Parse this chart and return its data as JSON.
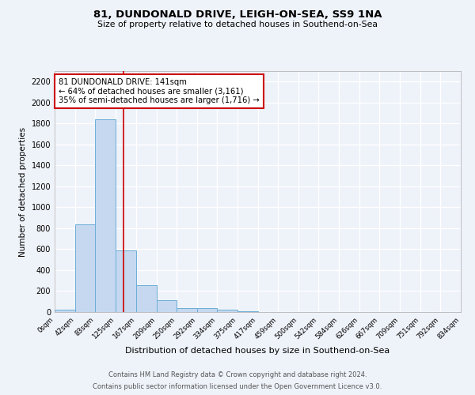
{
  "title1": "81, DUNDONALD DRIVE, LEIGH-ON-SEA, SS9 1NA",
  "title2": "Size of property relative to detached houses in Southend-on-Sea",
  "xlabel": "Distribution of detached houses by size in Southend-on-Sea",
  "ylabel": "Number of detached properties",
  "footer1": "Contains HM Land Registry data © Crown copyright and database right 2024.",
  "footer2": "Contains public sector information licensed under the Open Government Licence v3.0.",
  "annotation_line1": "81 DUNDONALD DRIVE: 141sqm",
  "annotation_line2": "← 64% of detached houses are smaller (3,161)",
  "annotation_line3": "35% of semi-detached houses are larger (1,716) →",
  "bar_color": "#c5d8f0",
  "bar_edge_color": "#6baed6",
  "vline_color": "#cc0000",
  "vline_x": 141,
  "bin_edges": [
    0,
    42,
    83,
    125,
    167,
    209,
    250,
    292,
    334,
    375,
    417,
    459,
    500,
    542,
    584,
    626,
    667,
    709,
    751,
    792,
    834
  ],
  "bar_heights": [
    20,
    840,
    1840,
    590,
    255,
    115,
    38,
    35,
    22,
    8,
    0,
    0,
    0,
    0,
    0,
    0,
    0,
    0,
    0,
    0
  ],
  "ylim": [
    0,
    2300
  ],
  "yticks": [
    0,
    200,
    400,
    600,
    800,
    1000,
    1200,
    1400,
    1600,
    1800,
    2000,
    2200
  ],
  "background_color": "#eef2f9",
  "grid_color": "#ffffff",
  "annotation_box_facecolor": "#ffffff",
  "annotation_box_edge": "#cc0000",
  "spine_color": "#aaaaaa"
}
